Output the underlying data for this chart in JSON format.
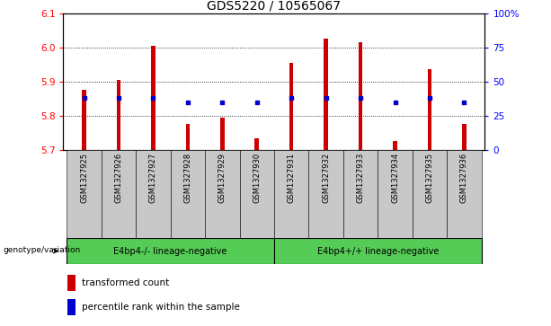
{
  "title": "GDS5220 / 10565067",
  "samples": [
    "GSM1327925",
    "GSM1327926",
    "GSM1327927",
    "GSM1327928",
    "GSM1327929",
    "GSM1327930",
    "GSM1327931",
    "GSM1327932",
    "GSM1327933",
    "GSM1327934",
    "GSM1327935",
    "GSM1327936"
  ],
  "bar_tops": [
    5.875,
    5.905,
    6.005,
    5.775,
    5.795,
    5.735,
    5.955,
    6.025,
    6.015,
    5.725,
    5.935,
    5.775
  ],
  "bar_bottom": 5.7,
  "blue_dot_values": [
    5.853,
    5.853,
    5.853,
    5.84,
    5.84,
    5.84,
    5.853,
    5.853,
    5.853,
    5.84,
    5.853,
    5.84
  ],
  "ylim": [
    5.7,
    6.1
  ],
  "yticks_left": [
    5.7,
    5.8,
    5.9,
    6.0,
    6.1
  ],
  "yticks_right_labels": [
    "0",
    "25",
    "50",
    "75",
    "100%"
  ],
  "yticks_right_vals": [
    5.7,
    5.8,
    5.9,
    6.0,
    6.1
  ],
  "bar_color": "#cc0000",
  "dot_color": "#0000cc",
  "group1_label": "E4bp4-/- lineage-negative",
  "group2_label": "E4bp4+/+ lineage-negative",
  "group1_indices": [
    0,
    1,
    2,
    3,
    4,
    5
  ],
  "group2_indices": [
    6,
    7,
    8,
    9,
    10,
    11
  ],
  "group_color": "#55cc55",
  "genotype_label": "genotype/variation",
  "legend_red_label": "transformed count",
  "legend_blue_label": "percentile rank within the sample",
  "title_fontsize": 10,
  "tick_fontsize": 7.5,
  "bar_width": 0.12
}
